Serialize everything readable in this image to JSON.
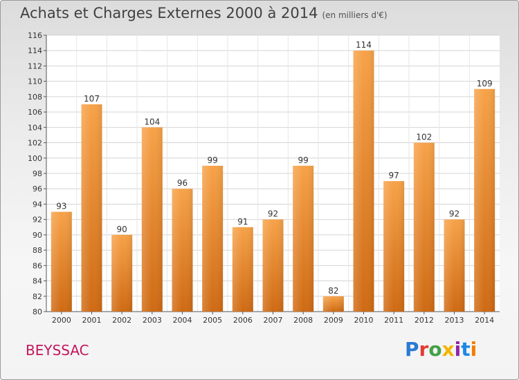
{
  "header": {
    "title": "Achats et Charges Externes 2000 à 2014",
    "subtitle": "(en milliers d'€)"
  },
  "footer": {
    "place": "BEYSSAC",
    "logo_text": "Proxiti"
  },
  "colors": {
    "bar": "#f28a1e",
    "bar_dark": "#d46a12",
    "place": "#c2185b",
    "text": "#404040"
  },
  "chart_data": {
    "type": "bar",
    "title": "Achats et Charges Externes 2000 à 2014",
    "subtitle": "(en milliers d'€)",
    "xlabel": "",
    "ylabel": "",
    "categories": [
      "2000",
      "2001",
      "2002",
      "2003",
      "2004",
      "2005",
      "2006",
      "2007",
      "2008",
      "2009",
      "2010",
      "2011",
      "2012",
      "2013",
      "2014"
    ],
    "values": [
      93,
      107,
      90,
      104,
      96,
      99,
      91,
      92,
      99,
      82,
      114,
      97,
      102,
      92,
      109
    ],
    "ylim": [
      80,
      116
    ],
    "yticks": [
      80,
      82,
      84,
      86,
      88,
      90,
      92,
      94,
      96,
      98,
      100,
      102,
      104,
      106,
      108,
      110,
      112,
      114,
      116
    ],
    "grid": "horizontal"
  }
}
